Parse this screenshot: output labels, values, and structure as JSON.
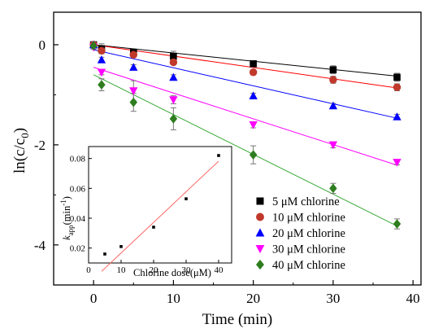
{
  "chart_data": [
    {
      "type": "scatter",
      "xlabel": "Time (min)",
      "ylabel": {
        "base": "ln(c/c",
        "sub": "0",
        "tail": ")"
      },
      "xlim": [
        -5,
        41
      ],
      "ylim": [
        -4.8,
        0.65
      ],
      "xticks": [
        0,
        10,
        20,
        30,
        40
      ],
      "yticks": [
        0,
        -2,
        -4
      ],
      "grid": false,
      "legend": "bottom-right",
      "x": [
        0,
        1,
        5,
        10,
        20,
        30,
        38
      ],
      "series": [
        {
          "name": "5 μM chlorine",
          "marker": "square",
          "color": "#000000",
          "line_color": "#000000",
          "values": [
            0,
            -0.08,
            -0.15,
            -0.23,
            -0.38,
            -0.5,
            -0.65
          ],
          "errors": [
            0.05,
            0.1,
            0.05,
            0.1,
            0.06,
            0.08,
            0.08
          ],
          "fit": [
            0,
            -0.0165
          ]
        },
        {
          "name": "10 μM chlorine",
          "marker": "circle",
          "color": "#c0392b",
          "line_color": "#ff0000",
          "values": [
            0,
            -0.12,
            -0.2,
            -0.35,
            -0.55,
            -0.7,
            -0.85
          ],
          "errors": [
            0.03,
            0.04,
            0.04,
            0.05,
            0.05,
            0.07,
            0.07
          ],
          "fit": [
            0,
            -0.0227
          ]
        },
        {
          "name": "20 μM chlorine",
          "marker": "triangle-up",
          "color": "#0000ff",
          "line_color": "#0000ff",
          "values": [
            0,
            -0.3,
            -0.45,
            -0.65,
            -1.02,
            -1.22,
            -1.44
          ],
          "errors": [
            0.03,
            0.05,
            0.05,
            0.05,
            0.05,
            0.05,
            0.05
          ],
          "fit": [
            -0.1,
            -0.036
          ]
        },
        {
          "name": "30 μM chlorine",
          "marker": "triangle-down",
          "color": "#ff00ff",
          "line_color": "#ff00ff",
          "values": [
            -0.05,
            -0.55,
            -0.92,
            -1.1,
            -1.6,
            -2.0,
            -2.35
          ],
          "errors": [
            0.04,
            0.05,
            0.2,
            0.08,
            0.06,
            0.06,
            0.05
          ],
          "fit": [
            -0.45,
            -0.0515
          ]
        },
        {
          "name": "40 μM chlorine",
          "marker": "diamond",
          "color": "#2e7d1f",
          "line_color": "#3aaa3a",
          "values": [
            -0.02,
            -0.8,
            -1.15,
            -1.48,
            -2.2,
            -2.87,
            -3.58
          ],
          "errors": [
            0.05,
            0.12,
            0.18,
            0.22,
            0.18,
            0.1,
            0.1
          ],
          "fit": [
            -0.6,
            -0.0795
          ]
        }
      ]
    },
    {
      "type": "scatter",
      "xlabel": "Chlorine dose(μM)",
      "ylabel": {
        "base": "k",
        "sub": "app",
        "tail": "(min",
        "sup": "-1",
        "close": ")"
      },
      "xlim": [
        0,
        44
      ],
      "ylim": [
        0.01,
        0.088
      ],
      "xticks": [
        0,
        10,
        20,
        30,
        40
      ],
      "yticks": [
        0.02,
        0.04,
        0.06,
        0.08
      ],
      "x": [
        5,
        10,
        20,
        30,
        40
      ],
      "values": [
        0.016,
        0.021,
        0.034,
        0.053,
        0.082
      ],
      "fit": [
        -0.0038,
        0.00205
      ],
      "fit_color": "#ff6666"
    }
  ]
}
